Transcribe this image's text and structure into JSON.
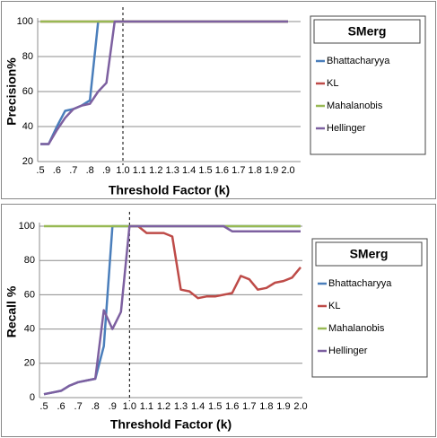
{
  "chart_data": [
    {
      "type": "line",
      "y_label": "Precision%",
      "x_label": "Threshold Factor (k)",
      "legend_title": "SMerg",
      "categories": [
        ".5",
        null,
        ".6",
        null,
        ".7",
        null,
        ".8",
        null,
        ".9",
        null,
        "1.0",
        null,
        "1.1",
        null,
        "1.2",
        null,
        "1.3",
        null,
        "1.4",
        null,
        "1.5",
        null,
        "1.6",
        null,
        "1.7",
        null,
        "1.8",
        null,
        "1.9",
        null,
        "2.0"
      ],
      "ylim": [
        20,
        100
      ],
      "yticks": [
        20,
        40,
        60,
        80,
        100
      ],
      "grid": true,
      "vline": 1.0,
      "series": [
        {
          "name": "Bhattacharyya",
          "color": "#4a7ebb",
          "values": [
            30,
            30,
            40,
            49,
            50,
            52,
            55,
            100,
            100,
            100,
            100,
            100,
            100,
            100,
            100,
            100,
            100,
            100,
            100,
            100,
            100,
            100,
            100,
            100,
            100,
            100,
            100,
            100,
            100,
            100,
            100
          ]
        },
        {
          "name": "KL",
          "color": "#be4b48",
          "values": [
            100,
            100,
            100,
            100,
            100,
            100,
            100,
            100,
            100,
            100,
            100,
            100,
            100,
            100,
            100,
            100,
            100,
            100,
            100,
            100,
            100,
            100,
            100,
            100,
            100,
            100,
            100,
            100,
            100,
            100,
            100
          ]
        },
        {
          "name": "Mahalanobis",
          "color": "#98b954",
          "values": [
            100,
            100,
            100,
            100,
            100,
            100,
            100,
            100,
            100,
            100,
            100,
            100,
            100,
            100,
            100,
            100,
            100,
            100,
            100,
            100,
            100,
            100,
            100,
            100,
            100,
            100,
            100,
            100,
            100,
            100,
            100
          ]
        },
        {
          "name": "Hellinger",
          "color": "#7d60a0",
          "values": [
            30,
            30,
            38,
            45,
            50,
            52,
            53,
            60,
            65,
            100,
            100,
            100,
            100,
            100,
            100,
            100,
            100,
            100,
            100,
            100,
            100,
            100,
            100,
            100,
            100,
            100,
            100,
            100,
            100,
            100,
            100
          ]
        }
      ]
    },
    {
      "type": "line",
      "y_label": "Recall %",
      "x_label": "Threshold Factor (k)",
      "legend_title": "SMerg",
      "categories": [
        ".5",
        null,
        ".6",
        null,
        ".7",
        null,
        ".8",
        null,
        ".9",
        null,
        "1.0",
        null,
        "1.1",
        null,
        "1.2",
        null,
        "1.3",
        null,
        "1.4",
        null,
        "1.5",
        null,
        "1.6",
        null,
        "1.7",
        null,
        "1.8",
        null,
        "1.9",
        null,
        "2.0"
      ],
      "ylim": [
        0,
        100
      ],
      "yticks": [
        0,
        20,
        40,
        60,
        80,
        100
      ],
      "grid": true,
      "vline": 1.0,
      "series": [
        {
          "name": "Bhattacharyya",
          "color": "#4a7ebb",
          "values": [
            2,
            3,
            4,
            7,
            9,
            10,
            11,
            30,
            100,
            100,
            100,
            100,
            100,
            100,
            100,
            100,
            100,
            100,
            100,
            100,
            100,
            100,
            100,
            100,
            100,
            100,
            100,
            100,
            100,
            100,
            100
          ]
        },
        {
          "name": "KL",
          "color": "#be4b48",
          "values": [
            null,
            null,
            null,
            null,
            null,
            null,
            null,
            null,
            null,
            null,
            100,
            100,
            96,
            96,
            96,
            94,
            63,
            62,
            58,
            59,
            59,
            60,
            61,
            71,
            69,
            63,
            64,
            67,
            68,
            70,
            76
          ]
        },
        {
          "name": "Mahalanobis",
          "color": "#98b954",
          "values": [
            100,
            100,
            100,
            100,
            100,
            100,
            100,
            100,
            100,
            100,
            100,
            100,
            100,
            100,
            100,
            100,
            100,
            100,
            100,
            100,
            100,
            100,
            100,
            100,
            100,
            100,
            100,
            100,
            100,
            100,
            100
          ]
        },
        {
          "name": "Hellinger",
          "color": "#7d60a0",
          "values": [
            2,
            3,
            4,
            7,
            9,
            10,
            11,
            51,
            40,
            50,
            100,
            100,
            100,
            100,
            100,
            100,
            100,
            100,
            100,
            100,
            100,
            100,
            97,
            97,
            97,
            97,
            97,
            97,
            97,
            97,
            97
          ]
        }
      ]
    }
  ]
}
